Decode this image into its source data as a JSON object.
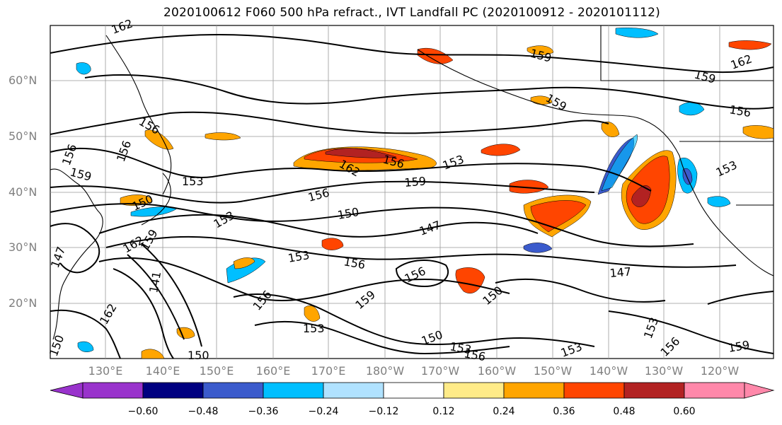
{
  "title": "2020100612 F060 500 hPa refract., IVT Landfall PC (2020100912 - 2020101112)",
  "lat_labels": [
    "60°N",
    "50°N",
    "40°N",
    "30°N",
    "20°N"
  ],
  "lon_labels": [
    "130°E",
    "140°E",
    "150°E",
    "160°E",
    "170°E",
    "180°W",
    "170°W",
    "160°W",
    "150°W",
    "140°W",
    "130°W",
    "120°W"
  ],
  "colorbar": {
    "ticks": [
      "−0.60",
      "−0.48",
      "−0.36",
      "−0.24",
      "−0.12",
      "0.12",
      "0.24",
      "0.36",
      "0.48",
      "0.60"
    ],
    "colors": [
      "#9933cc",
      "#000080",
      "#3b5bcc",
      "#00bfff",
      "#b0e2ff",
      "#ffffff",
      "#ffeb88",
      "#ffa500",
      "#ff4500",
      "#b22222",
      "#ff88aa"
    ]
  },
  "contour_labels": [
    "162",
    "159",
    "162",
    "159",
    "156",
    "159",
    "156",
    "153",
    "156",
    "159",
    "153",
    "156",
    "153",
    "156",
    "162",
    "156",
    "159",
    "150",
    "153",
    "150",
    "150",
    "153",
    "147",
    "162",
    "159",
    "153",
    "156",
    "147",
    "156",
    "156",
    "159",
    "150",
    "153",
    "150",
    "153",
    "156",
    "153",
    "156",
    "159",
    "150",
    "147",
    "141",
    "162",
    "150",
    "153",
    "153",
    "156",
    "159",
    "153",
    "150",
    "147"
  ]
}
